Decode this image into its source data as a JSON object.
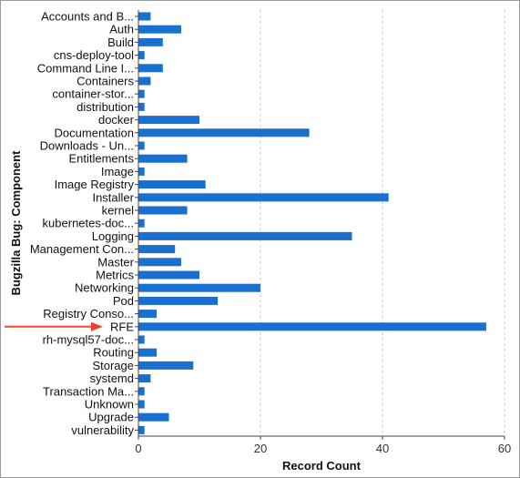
{
  "chart_data": {
    "type": "bar",
    "orientation": "horizontal",
    "xlabel": "Record Count",
    "ylabel": "Bugzilla Bug: Component",
    "xlim": [
      0,
      60
    ],
    "xticks": [
      0,
      20,
      40,
      60
    ],
    "grid": true,
    "bar_color": "#1a6fcf",
    "annotation": {
      "type": "arrow",
      "target": "RFE",
      "color": "#e8462a"
    },
    "categories": [
      "Accounts and B...",
      "Auth",
      "Build",
      "cns-deploy-tool",
      "Command Line I...",
      "Containers",
      "container-stor...",
      "distribution",
      "docker",
      "Documentation",
      "Downloads - Un...",
      "Entitlements",
      "Image",
      "Image Registry",
      "Installer",
      "kernel",
      "kubernetes-doc...",
      "Logging",
      "Management Con...",
      "Master",
      "Metrics",
      "Networking",
      "Pod",
      "Registry Conso...",
      "RFE",
      "rh-mysql57-doc...",
      "Routing",
      "Storage",
      "systemd",
      "Transaction Ma...",
      "Unknown",
      "Upgrade",
      "vulnerability"
    ],
    "values": [
      2,
      7,
      4,
      1,
      4,
      2,
      1,
      1,
      10,
      28,
      1,
      8,
      1,
      11,
      41,
      8,
      1,
      35,
      6,
      7,
      10,
      20,
      13,
      3,
      57,
      1,
      3,
      9,
      2,
      1,
      1,
      5,
      1
    ]
  }
}
